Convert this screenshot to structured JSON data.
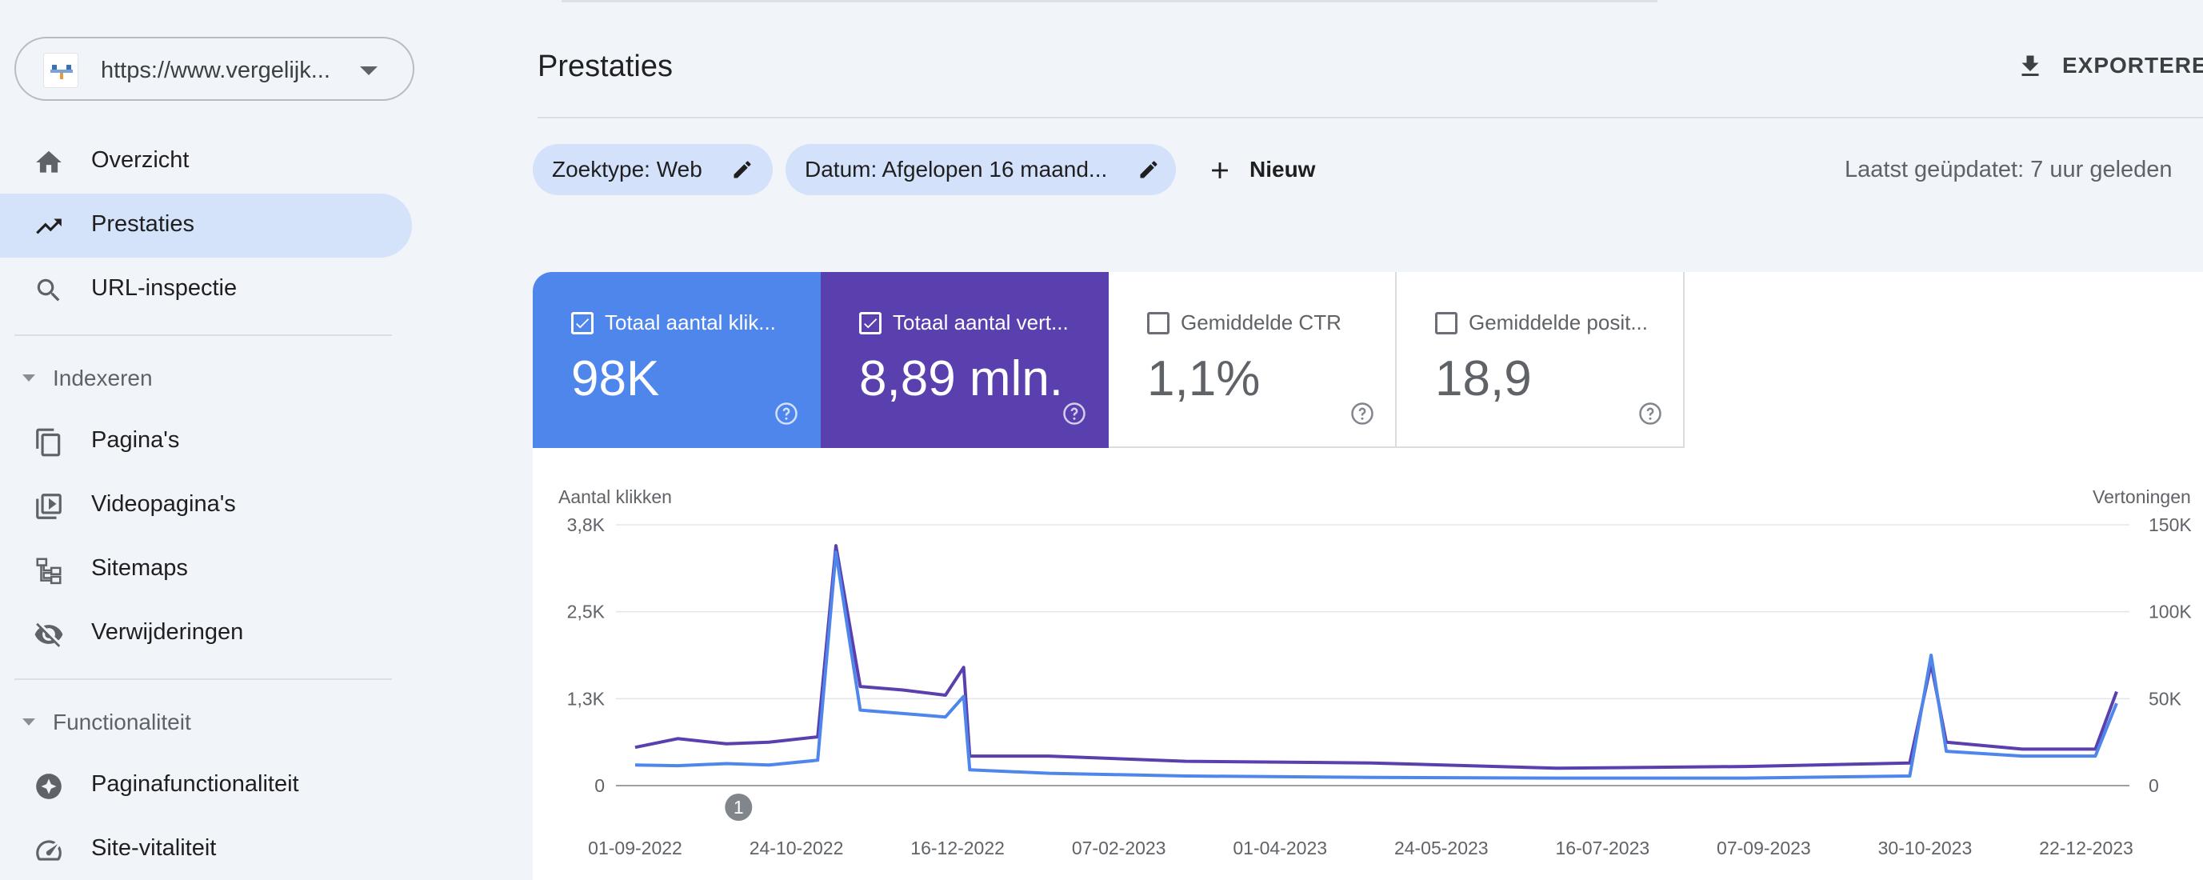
{
  "sidebar": {
    "property": "https://www.vergelijk...",
    "items": [
      {
        "label": "Overzicht",
        "icon": "home-icon"
      },
      {
        "label": "Prestaties",
        "icon": "trending-up-icon",
        "active": true
      },
      {
        "label": "URL-inspectie",
        "icon": "search-icon"
      },
      {
        "label": "Pagina's",
        "icon": "pages-icon"
      },
      {
        "label": "Videopagina's",
        "icon": "video-pages-icon"
      },
      {
        "label": "Sitemaps",
        "icon": "sitemap-icon"
      },
      {
        "label": "Verwijderingen",
        "icon": "visibility-off-icon"
      },
      {
        "label": "Paginafunctionaliteit",
        "icon": "page-experience-icon"
      },
      {
        "label": "Site-vitaliteit",
        "icon": "speed-icon"
      }
    ],
    "sections": [
      "Indexeren",
      "Functionaliteit"
    ]
  },
  "header": {
    "title": "Prestaties",
    "export_label": "EXPORTEREN"
  },
  "filters": {
    "search_type": "Zoektype: Web",
    "date": "Datum: Afgelopen 16 maand...",
    "new_label": "Nieuw",
    "last_updated": "Laatst geüpdatet: 7 uur geleden"
  },
  "metrics": [
    {
      "label": "Totaal aantal klik...",
      "value": "98K",
      "checked": true,
      "color": "#4f86ec"
    },
    {
      "label": "Totaal aantal vert...",
      "value": "8,89 mln.",
      "checked": true,
      "color": "#5a3fae"
    },
    {
      "label": "Gemiddelde CTR",
      "value": "1,1%",
      "checked": false
    },
    {
      "label": "Gemiddelde posit...",
      "value": "18,9",
      "checked": false
    }
  ],
  "chart_data": {
    "type": "line",
    "ylabel_left": "Aantal klikken",
    "ylabel_right": "Vertoningen",
    "yticks_left": [
      "3,8K",
      "2,5K",
      "1,3K",
      "0"
    ],
    "yticks_right": [
      "150K",
      "100K",
      "50K",
      "0"
    ],
    "ylim_left": [
      0,
      3800
    ],
    "ylim_right": [
      0,
      150000
    ],
    "xticks": [
      "01-09-2022",
      "24-10-2022",
      "16-12-2022",
      "07-02-2023",
      "01-04-2023",
      "24-05-2023",
      "16-07-2023",
      "07-09-2023",
      "30-10-2023",
      "22-12-2023"
    ],
    "annotation": "1",
    "grid": true,
    "series": [
      {
        "name": "Totaal aantal klikken",
        "axis": "left",
        "color": "#4f86ec",
        "points": [
          {
            "date": "2022-09-01",
            "value": 300
          },
          {
            "date": "2022-09-15",
            "value": 290
          },
          {
            "date": "2022-10-01",
            "value": 320
          },
          {
            "date": "2022-10-15",
            "value": 300
          },
          {
            "date": "2022-10-31",
            "value": 370
          },
          {
            "date": "2022-11-06",
            "value": 3400
          },
          {
            "date": "2022-11-14",
            "value": 1100
          },
          {
            "date": "2022-11-28",
            "value": 1050
          },
          {
            "date": "2022-12-12",
            "value": 1000
          },
          {
            "date": "2022-12-18",
            "value": 1300
          },
          {
            "date": "2022-12-20",
            "value": 230
          },
          {
            "date": "2023-01-15",
            "value": 180
          },
          {
            "date": "2023-03-01",
            "value": 140
          },
          {
            "date": "2023-05-01",
            "value": 120
          },
          {
            "date": "2023-07-01",
            "value": 110
          },
          {
            "date": "2023-09-01",
            "value": 110
          },
          {
            "date": "2023-10-25",
            "value": 140
          },
          {
            "date": "2023-11-01",
            "value": 1900
          },
          {
            "date": "2023-11-06",
            "value": 500
          },
          {
            "date": "2023-12-01",
            "value": 430
          },
          {
            "date": "2023-12-25",
            "value": 430
          },
          {
            "date": "2024-01-01",
            "value": 1200
          }
        ]
      },
      {
        "name": "Totaal aantal vertoningen",
        "axis": "right",
        "color": "#5a3fae",
        "points": [
          {
            "date": "2022-09-01",
            "value": 22000
          },
          {
            "date": "2022-09-15",
            "value": 27000
          },
          {
            "date": "2022-10-01",
            "value": 24000
          },
          {
            "date": "2022-10-15",
            "value": 25000
          },
          {
            "date": "2022-10-31",
            "value": 28000
          },
          {
            "date": "2022-11-06",
            "value": 138000
          },
          {
            "date": "2022-11-14",
            "value": 57000
          },
          {
            "date": "2022-11-28",
            "value": 55000
          },
          {
            "date": "2022-12-12",
            "value": 52000
          },
          {
            "date": "2022-12-18",
            "value": 68000
          },
          {
            "date": "2022-12-20",
            "value": 17000
          },
          {
            "date": "2023-01-15",
            "value": 17000
          },
          {
            "date": "2023-03-01",
            "value": 14000
          },
          {
            "date": "2023-05-01",
            "value": 13000
          },
          {
            "date": "2023-07-01",
            "value": 10000
          },
          {
            "date": "2023-09-01",
            "value": 11000
          },
          {
            "date": "2023-10-25",
            "value": 13000
          },
          {
            "date": "2023-11-01",
            "value": 70000
          },
          {
            "date": "2023-11-06",
            "value": 25000
          },
          {
            "date": "2023-12-01",
            "value": 21000
          },
          {
            "date": "2023-12-25",
            "value": 21000
          },
          {
            "date": "2024-01-01",
            "value": 54000
          }
        ]
      }
    ]
  }
}
